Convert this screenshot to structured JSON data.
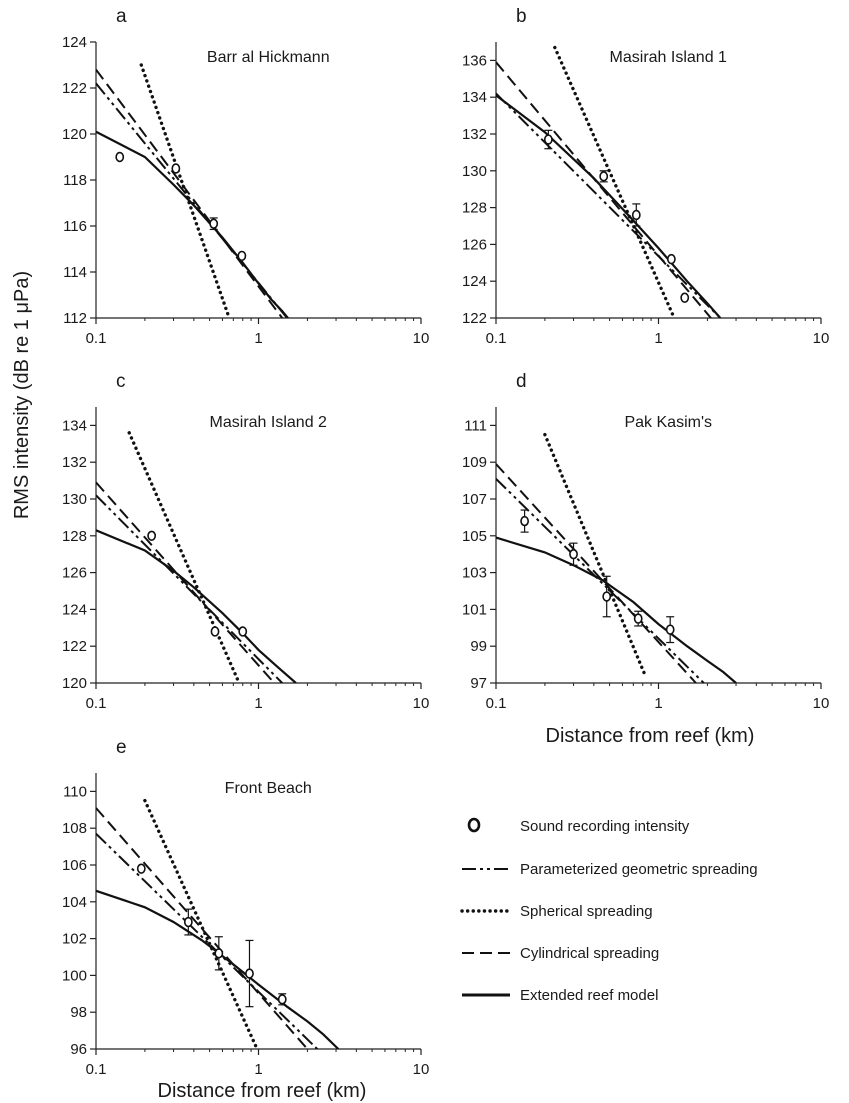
{
  "figure": {
    "ylabel": "RMS intensity (dB re 1 μPa)",
    "xlabel": "Distance from reef (km)"
  },
  "legend": {
    "placement": "bottom-right",
    "entries": [
      {
        "label": "Sound recording intensity",
        "style": "marker"
      },
      {
        "label": "Parameterized geometric spreading",
        "style": "dashdot"
      },
      {
        "label": "Spherical spreading",
        "style": "dotted"
      },
      {
        "label": "Cylindrical spreading",
        "style": "dashed"
      },
      {
        "label": "Extended reef model",
        "style": "solid"
      }
    ]
  },
  "chart_data": [
    {
      "type": "scatter",
      "panel": "a",
      "title": "Barr al Hickmann",
      "xscale": "log",
      "xlim": [
        0.1,
        10
      ],
      "ylim": [
        112,
        124
      ],
      "xticks": [
        "0.1",
        "1",
        "10"
      ],
      "yticks": [
        112,
        114,
        116,
        118,
        120,
        122,
        124
      ],
      "points": [
        {
          "x": 0.14,
          "y": 119.0,
          "err": 0.1
        },
        {
          "x": 0.31,
          "y": 118.5,
          "err": 0.1
        },
        {
          "x": 0.53,
          "y": 116.1,
          "err": 0.25
        },
        {
          "x": 0.79,
          "y": 114.7,
          "err": 0.1
        }
      ],
      "series": [
        {
          "name": "Parameterized geometric spreading",
          "style": "dashdot",
          "x": [
            0.1,
            1.5
          ],
          "y": [
            122.2,
            112.0
          ]
        },
        {
          "name": "Spherical spreading",
          "style": "dotted",
          "x": [
            0.19,
            0.66
          ],
          "y": [
            123.0,
            112.0
          ]
        },
        {
          "name": "Cylindrical spreading",
          "style": "dashed",
          "x": [
            0.1,
            1.4
          ],
          "y": [
            122.8,
            112.0
          ]
        },
        {
          "name": "Extended reef model",
          "style": "solid",
          "x": [
            0.1,
            0.2,
            0.3,
            0.4,
            0.6,
            0.8,
            1.0,
            1.2,
            1.4,
            1.6
          ],
          "y": [
            120.1,
            119.0,
            117.8,
            116.9,
            115.5,
            114.4,
            113.5,
            112.8,
            112.3,
            111.8
          ]
        }
      ]
    },
    {
      "type": "scatter",
      "panel": "b",
      "title": "Masirah Island 1",
      "xscale": "log",
      "xlim": [
        0.1,
        10
      ],
      "ylim": [
        122,
        137
      ],
      "xticks": [
        "0.1",
        "1",
        "10"
      ],
      "yticks": [
        122,
        124,
        126,
        128,
        130,
        132,
        134,
        136
      ],
      "points": [
        {
          "x": 0.21,
          "y": 131.7,
          "err": 0.5
        },
        {
          "x": 0.46,
          "y": 129.7,
          "err": 0.3
        },
        {
          "x": 0.73,
          "y": 127.6,
          "err": 0.6
        },
        {
          "x": 1.2,
          "y": 125.2,
          "err": 0.1
        },
        {
          "x": 1.45,
          "y": 123.1,
          "err": 0.1
        }
      ],
      "series": [
        {
          "name": "Parameterized geometric spreading",
          "style": "dashdot",
          "x": [
            0.1,
            2.4
          ],
          "y": [
            134.2,
            122.0
          ]
        },
        {
          "name": "Spherical spreading",
          "style": "dotted",
          "x": [
            0.23,
            1.25
          ],
          "y": [
            136.7,
            122.0
          ]
        },
        {
          "name": "Cylindrical spreading",
          "style": "dashed",
          "x": [
            0.1,
            2.1
          ],
          "y": [
            135.9,
            122.0
          ]
        },
        {
          "name": "Extended reef model",
          "style": "solid",
          "x": [
            0.1,
            0.2,
            0.4,
            0.7,
            1.0,
            1.5,
            2.0,
            2.4
          ],
          "y": [
            134.1,
            132.1,
            129.6,
            127.3,
            125.8,
            124.0,
            122.8,
            122.0
          ]
        }
      ]
    },
    {
      "type": "scatter",
      "panel": "c",
      "title": "Masirah Island 2",
      "xscale": "log",
      "xlim": [
        0.1,
        10
      ],
      "ylim": [
        120,
        135
      ],
      "xticks": [
        "0.1",
        "1",
        "10"
      ],
      "yticks": [
        120,
        122,
        124,
        126,
        128,
        130,
        132,
        134
      ],
      "points": [
        {
          "x": 0.22,
          "y": 128.0,
          "err": 0.15
        },
        {
          "x": 0.54,
          "y": 122.8,
          "err": 0.1
        },
        {
          "x": 0.8,
          "y": 122.8,
          "err": 0.15
        }
      ],
      "series": [
        {
          "name": "Parameterized geometric spreading",
          "style": "dashdot",
          "x": [
            0.1,
            1.4
          ],
          "y": [
            130.2,
            120.0
          ]
        },
        {
          "name": "Spherical spreading",
          "style": "dotted",
          "x": [
            0.16,
            0.76
          ],
          "y": [
            133.6,
            120.0
          ]
        },
        {
          "name": "Cylindrical spreading",
          "style": "dashed",
          "x": [
            0.1,
            1.25
          ],
          "y": [
            130.9,
            120.0
          ]
        },
        {
          "name": "Extended reef model",
          "style": "solid",
          "x": [
            0.1,
            0.2,
            0.3,
            0.4,
            0.6,
            0.8,
            1.0,
            1.3,
            1.7
          ],
          "y": [
            128.3,
            127.2,
            126.1,
            125.2,
            123.8,
            122.7,
            121.8,
            120.9,
            120.0
          ]
        }
      ]
    },
    {
      "type": "scatter",
      "panel": "d",
      "title": "Pak Kasim's",
      "xscale": "log",
      "xlim": [
        0.1,
        10
      ],
      "ylim": [
        97,
        112
      ],
      "xticks": [
        "0.1",
        "1",
        "10"
      ],
      "yticks": [
        97,
        99,
        101,
        103,
        105,
        107,
        109,
        111
      ],
      "points": [
        {
          "x": 0.15,
          "y": 105.8,
          "err": 0.6
        },
        {
          "x": 0.3,
          "y": 104.0,
          "err": 0.6
        },
        {
          "x": 0.48,
          "y": 101.7,
          "err": 1.1
        },
        {
          "x": 0.75,
          "y": 100.5,
          "err": 0.4
        },
        {
          "x": 1.18,
          "y": 99.9,
          "err": 0.7
        }
      ],
      "series": [
        {
          "name": "Parameterized geometric spreading",
          "style": "dashdot",
          "x": [
            0.1,
            1.9
          ],
          "y": [
            108.1,
            97.0
          ]
        },
        {
          "name": "Spherical spreading",
          "style": "dotted",
          "x": [
            0.2,
            0.82
          ],
          "y": [
            110.5,
            97.5
          ]
        },
        {
          "name": "Cylindrical spreading",
          "style": "dashed",
          "x": [
            0.1,
            1.7
          ],
          "y": [
            108.9,
            97.0
          ]
        },
        {
          "name": "Extended reef model",
          "style": "solid",
          "x": [
            0.1,
            0.2,
            0.3,
            0.45,
            0.7,
            1.0,
            1.5,
            2.0,
            2.5,
            3.0
          ],
          "y": [
            104.9,
            104.1,
            103.4,
            102.6,
            101.4,
            100.2,
            99.0,
            98.2,
            97.6,
            97.0
          ]
        }
      ]
    },
    {
      "type": "scatter",
      "panel": "e",
      "title": "Front Beach",
      "xscale": "log",
      "xlim": [
        0.1,
        10
      ],
      "ylim": [
        96,
        111
      ],
      "xticks": [
        "0.1",
        "1",
        "10"
      ],
      "yticks": [
        96,
        98,
        100,
        102,
        104,
        106,
        108,
        110
      ],
      "points": [
        {
          "x": 0.19,
          "y": 105.8,
          "err": 0.15
        },
        {
          "x": 0.37,
          "y": 102.9,
          "err": 0.7
        },
        {
          "x": 0.57,
          "y": 101.2,
          "err": 0.9
        },
        {
          "x": 0.88,
          "y": 100.1,
          "err": 1.8
        },
        {
          "x": 1.4,
          "y": 98.7,
          "err": 0.3
        }
      ],
      "series": [
        {
          "name": "Parameterized geometric spreading",
          "style": "dashdot",
          "x": [
            0.1,
            2.3
          ],
          "y": [
            107.7,
            96.0
          ]
        },
        {
          "name": "Spherical spreading",
          "style": "dotted",
          "x": [
            0.2,
            0.98
          ],
          "y": [
            109.5,
            96.0
          ]
        },
        {
          "name": "Cylindrical spreading",
          "style": "dashed",
          "x": [
            0.1,
            2.0
          ],
          "y": [
            109.1,
            96.0
          ]
        },
        {
          "name": "Extended reef model",
          "style": "solid",
          "x": [
            0.1,
            0.2,
            0.3,
            0.45,
            0.7,
            1.0,
            1.5,
            2.0,
            2.5,
            3.1
          ],
          "y": [
            104.6,
            103.7,
            102.9,
            101.9,
            100.6,
            99.5,
            98.3,
            97.5,
            96.8,
            96.0
          ]
        }
      ]
    }
  ]
}
